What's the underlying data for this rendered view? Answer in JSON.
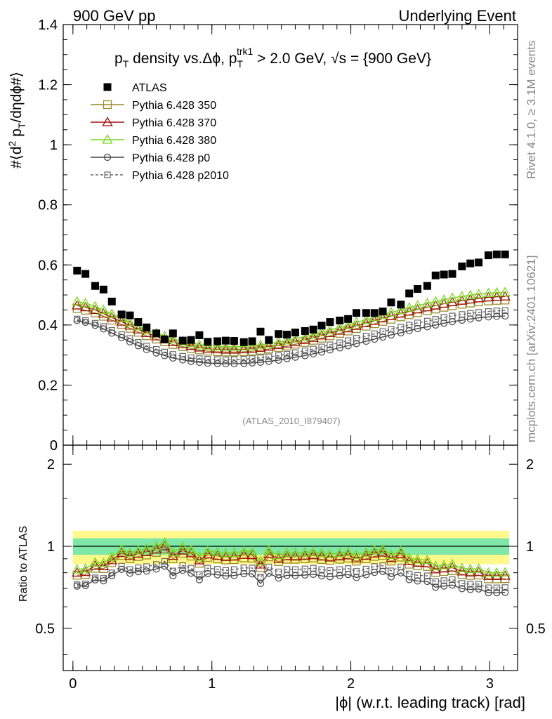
{
  "header": {
    "left": "900 GeV pp",
    "right": "Underlying Event"
  },
  "side": {
    "rivet": "Rivet 4.1.0, ≥ 3.1M events",
    "mcplots": "mcplots.cern.ch [arXiv:2401.10621]"
  },
  "chart_data": {
    "type": "scatter",
    "title_parts": {
      "p": "p",
      "T": "T",
      "density": " density vs.Δϕ, p",
      "sub_T": "T",
      "sup_trk1": "trk1",
      "tail": " > 2.0 GeV, ",
      "sqrt": "√s",
      "eq": " = {900 GeV}"
    },
    "analysis_id": "(ATLAS_2010_I879407)",
    "ylabel_main": "#⟨d² pₜ/dηdϕ#⟩",
    "ylabel_parts": {
      "a": "#⟨d",
      "sup2": "2",
      "b": " p",
      "sub": "T",
      "c": "/dηdϕ#⟩"
    },
    "ylabel_ratio": "Ratio to ATLAS",
    "xlabel": "|ϕ| (w.r.t. leading track) [rad]",
    "main_ylim": [
      0,
      1.4
    ],
    "ratio_ylim": [
      0.35,
      2.35
    ],
    "xlim": [
      -0.07,
      3.2
    ],
    "main_yticks": [
      "0",
      "0.2",
      "0.4",
      "0.6",
      "0.8",
      "1",
      "1.2",
      "1.4"
    ],
    "main_ytick_values": [
      0,
      0.2,
      0.4,
      0.6,
      0.8,
      1.0,
      1.2,
      1.4
    ],
    "ratio_yticks": [
      "0.5",
      "1",
      "2"
    ],
    "ratio_ytick_values": [
      0.5,
      1,
      2
    ],
    "xticks": [
      "0",
      "1",
      "2",
      "3"
    ],
    "xtick_values": [
      0,
      1,
      2,
      3
    ],
    "legend": [
      {
        "label": "ATLAS",
        "color": "#000000",
        "marker": "filled-square",
        "dash": false
      },
      {
        "label": "Pythia 6.428 350",
        "color": "#9a8a2a",
        "marker": "open-square",
        "dash": false
      },
      {
        "label": "Pythia 6.428 370",
        "color": "#a01010",
        "marker": "open-triangle",
        "dash": false
      },
      {
        "label": "Pythia 6.428 380",
        "color": "#7cd620",
        "marker": "open-triangle",
        "dash": false
      },
      {
        "label": "Pythia 6.428 p0",
        "color": "#444444",
        "marker": "open-circle",
        "dash": false
      },
      {
        "label": "Pythia 6.428 p2010",
        "color": "#666666",
        "marker": "open-square-small",
        "dash": true
      }
    ],
    "atlas_x": [
      0.03,
      0.09,
      0.16,
      0.22,
      0.28,
      0.35,
      0.41,
      0.47,
      0.53,
      0.6,
      0.66,
      0.72,
      0.79,
      0.85,
      0.91,
      0.97,
      1.04,
      1.1,
      1.16,
      1.23,
      1.29,
      1.35,
      1.41,
      1.48,
      1.54,
      1.6,
      1.67,
      1.73,
      1.79,
      1.85,
      1.92,
      1.98,
      2.04,
      2.11,
      2.17,
      2.23,
      2.29,
      2.36,
      2.42,
      2.48,
      2.55,
      2.61,
      2.67,
      2.73,
      2.8,
      2.86,
      2.92,
      2.99,
      3.05,
      3.11
    ],
    "atlas_y": [
      0.581,
      0.57,
      0.53,
      0.518,
      0.478,
      0.435,
      0.432,
      0.41,
      0.392,
      0.372,
      0.352,
      0.372,
      0.348,
      0.35,
      0.366,
      0.344,
      0.346,
      0.348,
      0.347,
      0.343,
      0.346,
      0.378,
      0.35,
      0.37,
      0.368,
      0.375,
      0.38,
      0.385,
      0.398,
      0.41,
      0.415,
      0.42,
      0.44,
      0.44,
      0.44,
      0.445,
      0.475,
      0.468,
      0.505,
      0.52,
      0.53,
      0.565,
      0.568,
      0.57,
      0.595,
      0.605,
      0.608,
      0.632,
      0.635,
      0.635
    ],
    "series": [
      {
        "name": "Pythia 6.428 350",
        "color": "#9a8a2a",
        "values": [
          0.455,
          0.449,
          0.44,
          0.429,
          0.416,
          0.402,
          0.389,
          0.376,
          0.364,
          0.353,
          0.344,
          0.335,
          0.328,
          0.322,
          0.317,
          0.313,
          0.311,
          0.31,
          0.31,
          0.311,
          0.313,
          0.316,
          0.32,
          0.325,
          0.33,
          0.336,
          0.342,
          0.349,
          0.356,
          0.364,
          0.372,
          0.38,
          0.388,
          0.396,
          0.404,
          0.412,
          0.419,
          0.427,
          0.434,
          0.441,
          0.447,
          0.453,
          0.459,
          0.464,
          0.469,
          0.473,
          0.477,
          0.48,
          0.482,
          0.483
        ]
      },
      {
        "name": "Pythia 6.428 370",
        "color": "#a01010",
        "values": [
          0.465,
          0.459,
          0.45,
          0.438,
          0.425,
          0.411,
          0.398,
          0.385,
          0.373,
          0.362,
          0.352,
          0.343,
          0.336,
          0.33,
          0.325,
          0.321,
          0.319,
          0.318,
          0.318,
          0.319,
          0.321,
          0.324,
          0.328,
          0.333,
          0.338,
          0.344,
          0.35,
          0.357,
          0.365,
          0.373,
          0.381,
          0.389,
          0.397,
          0.406,
          0.414,
          0.422,
          0.43,
          0.438,
          0.445,
          0.452,
          0.459,
          0.465,
          0.471,
          0.476,
          0.481,
          0.485,
          0.489,
          0.492,
          0.494,
          0.495
        ]
      },
      {
        "name": "Pythia 6.428 380",
        "color": "#7cd620",
        "values": [
          0.478,
          0.472,
          0.462,
          0.45,
          0.437,
          0.423,
          0.409,
          0.396,
          0.384,
          0.373,
          0.363,
          0.354,
          0.346,
          0.34,
          0.335,
          0.331,
          0.329,
          0.328,
          0.328,
          0.329,
          0.331,
          0.334,
          0.338,
          0.343,
          0.349,
          0.355,
          0.361,
          0.368,
          0.376,
          0.384,
          0.392,
          0.4,
          0.409,
          0.417,
          0.426,
          0.434,
          0.442,
          0.45,
          0.458,
          0.465,
          0.472,
          0.478,
          0.484,
          0.49,
          0.495,
          0.499,
          0.503,
          0.506,
          0.508,
          0.509
        ]
      },
      {
        "name": "Pythia 6.428 p0",
        "color": "#444444",
        "values": [
          0.415,
          0.409,
          0.399,
          0.387,
          0.373,
          0.358,
          0.344,
          0.331,
          0.318,
          0.307,
          0.298,
          0.29,
          0.284,
          0.279,
          0.276,
          0.273,
          0.272,
          0.271,
          0.271,
          0.272,
          0.274,
          0.276,
          0.279,
          0.283,
          0.288,
          0.293,
          0.298,
          0.304,
          0.31,
          0.317,
          0.324,
          0.331,
          0.338,
          0.346,
          0.353,
          0.36,
          0.367,
          0.374,
          0.381,
          0.388,
          0.394,
          0.4,
          0.406,
          0.411,
          0.416,
          0.42,
          0.424,
          0.427,
          0.429,
          0.43
        ]
      },
      {
        "name": "Pythia 6.428 p2010",
        "color": "#666666",
        "values": [
          0.42,
          0.415,
          0.406,
          0.395,
          0.382,
          0.368,
          0.355,
          0.342,
          0.33,
          0.319,
          0.31,
          0.302,
          0.296,
          0.291,
          0.288,
          0.286,
          0.285,
          0.284,
          0.285,
          0.286,
          0.288,
          0.291,
          0.294,
          0.298,
          0.303,
          0.308,
          0.314,
          0.32,
          0.327,
          0.334,
          0.341,
          0.348,
          0.356,
          0.363,
          0.371,
          0.378,
          0.386,
          0.393,
          0.4,
          0.407,
          0.413,
          0.419,
          0.425,
          0.43,
          0.435,
          0.439,
          0.442,
          0.445,
          0.447,
          0.448
        ]
      }
    ],
    "ratio_band": {
      "inner": [
        0.93,
        1.07
      ],
      "outer": [
        0.86,
        1.14
      ]
    }
  }
}
